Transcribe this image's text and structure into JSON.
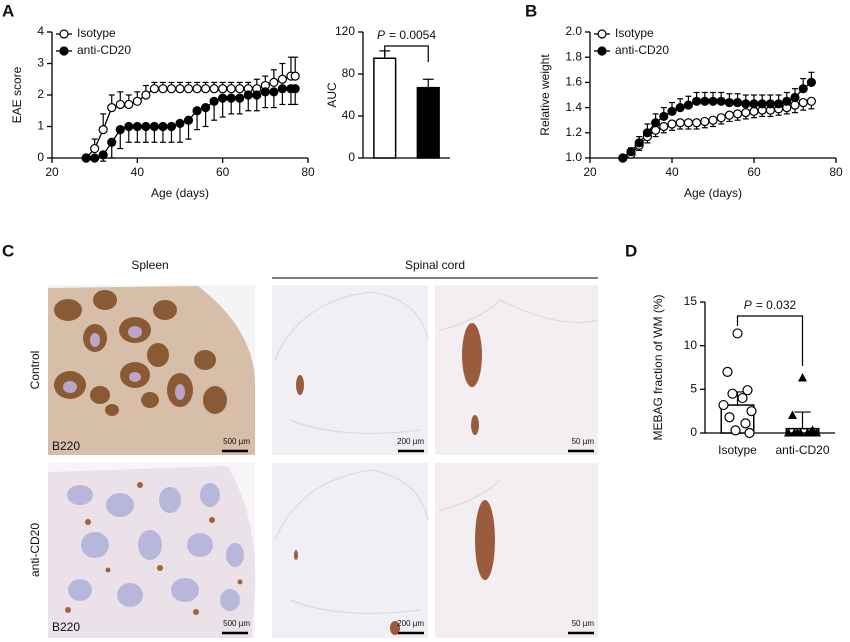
{
  "figure": {
    "panel_letters": [
      "A",
      "B",
      "C",
      "D"
    ],
    "microscopy": {
      "column_titles": [
        "Spleen",
        "Spinal cord"
      ],
      "row_titles": [
        "Control",
        "anti-CD20"
      ],
      "stain_labels": [
        "B220",
        "B220"
      ],
      "scale_bars": [
        [
          "500 µm",
          "200 µm",
          "50 µm"
        ],
        [
          "500 µm",
          "200 µm",
          "50 µm"
        ]
      ]
    }
  },
  "chart_data": [
    {
      "type": "line",
      "xlabel": "Age (days)",
      "ylabel": "EAE score",
      "xlim": [
        20,
        80
      ],
      "xticks": [
        20,
        40,
        60,
        80
      ],
      "ylim": [
        0,
        4
      ],
      "yticks": [
        0,
        1,
        2,
        3,
        4
      ],
      "legend": "upper left",
      "x": [
        28,
        30,
        32,
        34,
        36,
        38,
        40,
        42,
        44,
        46,
        48,
        50,
        52,
        54,
        56,
        58,
        60,
        62,
        64,
        66,
        68,
        70,
        72,
        74,
        76,
        77
      ],
      "series": [
        {
          "name": "Isotype",
          "color": "#000000",
          "marker": "open",
          "error_direction": "up",
          "values": [
            0,
            0.3,
            0.9,
            1.6,
            1.7,
            1.7,
            1.8,
            2.0,
            2.2,
            2.2,
            2.2,
            2.2,
            2.2,
            2.2,
            2.2,
            2.2,
            2.2,
            2.2,
            2.2,
            2.2,
            2.2,
            2.3,
            2.4,
            2.5,
            2.6,
            2.6
          ],
          "errors": [
            0,
            0.3,
            0.5,
            0.4,
            0.4,
            0.3,
            0.3,
            0.3,
            0.2,
            0.2,
            0.2,
            0.2,
            0.2,
            0.2,
            0.2,
            0.2,
            0.2,
            0.2,
            0.2,
            0.2,
            0.3,
            0.3,
            0.4,
            0.5,
            0.6,
            0.6
          ]
        },
        {
          "name": "anti-CD20",
          "color": "#000000",
          "marker": "filled",
          "error_direction": "down",
          "values": [
            0,
            0,
            0.1,
            0.5,
            0.9,
            1.0,
            1.0,
            1.0,
            1.0,
            1.0,
            1.0,
            1.1,
            1.2,
            1.5,
            1.6,
            1.8,
            1.9,
            1.9,
            1.9,
            2.0,
            2.0,
            2.1,
            2.1,
            2.2,
            2.2,
            2.2
          ],
          "errors": [
            0,
            0,
            0.2,
            0.5,
            0.6,
            0.5,
            0.5,
            0.5,
            0.5,
            0.5,
            0.5,
            0.6,
            0.6,
            0.6,
            0.6,
            0.6,
            0.6,
            0.5,
            0.5,
            0.5,
            0.5,
            0.5,
            0.5,
            0.5,
            0.5,
            0.5
          ]
        }
      ]
    },
    {
      "type": "bar",
      "ylabel": "AUC",
      "ylim": [
        0,
        120
      ],
      "yticks": [
        0,
        40,
        80,
        120
      ],
      "categories": [
        null,
        null
      ],
      "values": [
        95,
        67
      ],
      "errors": [
        7,
        8
      ],
      "colors": [
        "#ffffff",
        "#000000"
      ],
      "annotation_italic": "P",
      "annotation": "= 0.0054"
    },
    {
      "type": "line",
      "xlabel": "Age (days)",
      "ylabel": "Relative weight",
      "xlim": [
        20,
        80
      ],
      "xticks": [
        20,
        40,
        60,
        80
      ],
      "ylim": [
        1.0,
        2.0
      ],
      "yticks": [
        {
          "value": 1.0,
          "label": "1.0"
        },
        1.2,
        1.4,
        1.6,
        1.8,
        {
          "value": 2.0,
          "label": "2.0"
        }
      ],
      "legend": "upper left",
      "x": [
        28,
        30,
        32,
        34,
        36,
        38,
        40,
        42,
        44,
        46,
        48,
        50,
        52,
        54,
        56,
        58,
        60,
        62,
        64,
        66,
        68,
        70,
        72,
        74
      ],
      "series": [
        {
          "name": "Isotype",
          "color": "#000000",
          "marker": "open",
          "error_direction": "down",
          "values": [
            1.0,
            1.03,
            1.1,
            1.17,
            1.22,
            1.25,
            1.27,
            1.28,
            1.28,
            1.28,
            1.29,
            1.3,
            1.32,
            1.34,
            1.35,
            1.36,
            1.37,
            1.38,
            1.38,
            1.39,
            1.4,
            1.42,
            1.44,
            1.45
          ],
          "errors": [
            0,
            0.02,
            0.04,
            0.05,
            0.05,
            0.05,
            0.05,
            0.05,
            0.05,
            0.05,
            0.05,
            0.05,
            0.05,
            0.05,
            0.05,
            0.05,
            0.05,
            0.05,
            0.05,
            0.05,
            0.05,
            0.06,
            0.06,
            0.06
          ]
        },
        {
          "name": "anti-CD20",
          "color": "#000000",
          "marker": "filled",
          "error_direction": "up",
          "values": [
            1.0,
            1.05,
            1.12,
            1.2,
            1.28,
            1.33,
            1.37,
            1.4,
            1.42,
            1.45,
            1.45,
            1.45,
            1.45,
            1.44,
            1.44,
            1.43,
            1.43,
            1.43,
            1.43,
            1.43,
            1.45,
            1.48,
            1.55,
            1.6
          ],
          "errors": [
            0,
            0.03,
            0.05,
            0.07,
            0.07,
            0.07,
            0.07,
            0.07,
            0.07,
            0.07,
            0.07,
            0.07,
            0.07,
            0.07,
            0.07,
            0.07,
            0.07,
            0.07,
            0.07,
            0.07,
            0.07,
            0.07,
            0.08,
            0.08
          ]
        }
      ]
    },
    {
      "type": "bar",
      "ylabel": "MEBAG fraction of WM (%)",
      "ylim": [
        0,
        15
      ],
      "yticks": [
        0,
        5,
        10,
        15
      ],
      "categories": [
        "Isotype",
        "anti-CD20"
      ],
      "values": [
        3.2,
        0.5
      ],
      "errors": [
        1.5,
        1.9
      ],
      "colors": [
        "#ffffff",
        "#ffffff"
      ],
      "point_markers": [
        "circle",
        "triangle"
      ],
      "points": [
        [
          11.4,
          7.0,
          4.9,
          4.5,
          4.0,
          3.2,
          2.5,
          1.8,
          1.1,
          0.3,
          0
        ],
        [
          6.3,
          2.0,
          0.3,
          0,
          0,
          0,
          0,
          0,
          0,
          0
        ]
      ],
      "annotation_italic": "P",
      "annotation": "= 0.032"
    }
  ]
}
